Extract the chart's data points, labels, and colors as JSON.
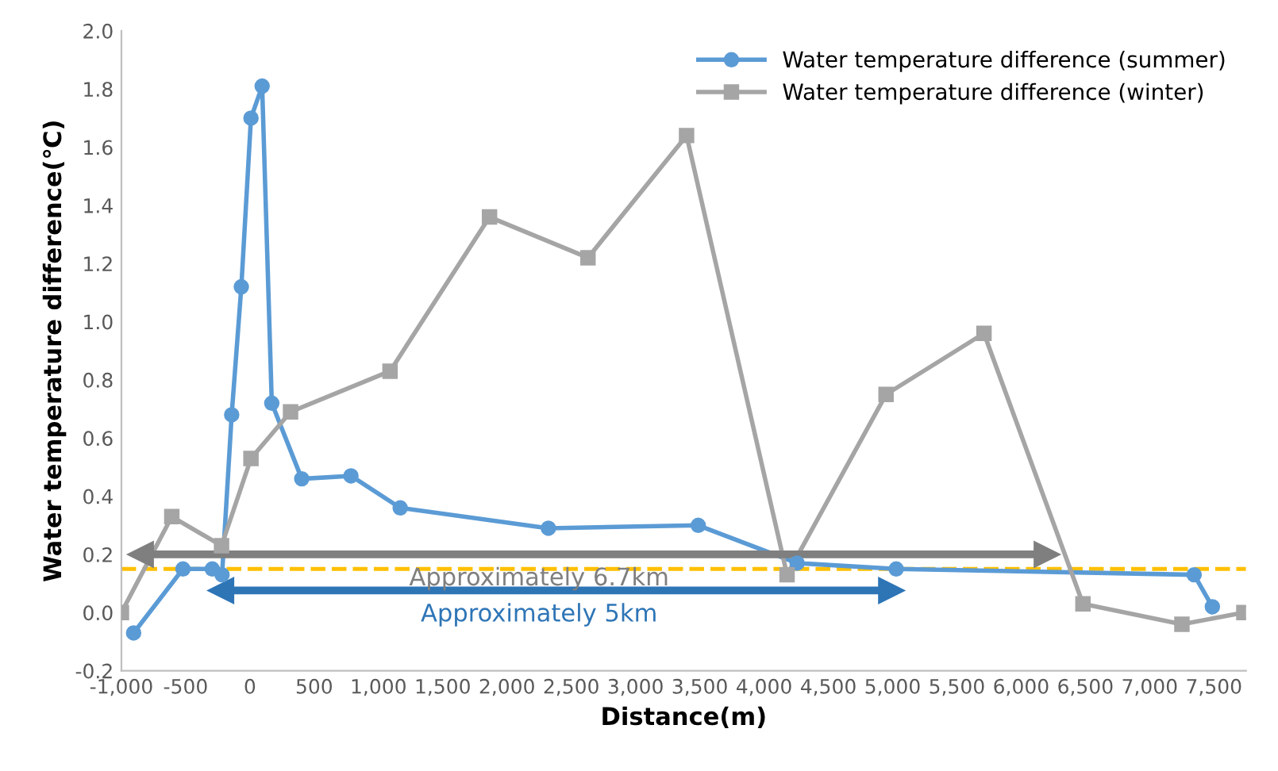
{
  "chart_data": {
    "type": "line",
    "xlabel": "Distance(m)",
    "ylabel": "Water temperature difference(℃)",
    "xlim": [
      -1000,
      7750
    ],
    "ylim": [
      -0.2,
      2.0
    ],
    "xticks": [
      {
        "value": -1000,
        "label": "-1,000"
      },
      -500,
      0,
      500,
      {
        "value": 1000,
        "label": "1,000"
      },
      {
        "value": 1500,
        "label": "1,500"
      },
      {
        "value": 2000,
        "label": "2,000"
      },
      {
        "value": 2500,
        "label": "2,500"
      },
      {
        "value": 3000,
        "label": "3,000"
      },
      {
        "value": 3500,
        "label": "3,500"
      },
      {
        "value": 4000,
        "label": "4,000"
      },
      {
        "value": 4500,
        "label": "4,500"
      },
      {
        "value": 5000,
        "label": "5,000"
      },
      {
        "value": 5500,
        "label": "5,500"
      },
      {
        "value": 6000,
        "label": "6,000"
      },
      {
        "value": 6500,
        "label": "6,500"
      },
      {
        "value": 7000,
        "label": "7,000"
      },
      {
        "value": 7500,
        "label": "7,500"
      }
    ],
    "yticks": [
      -0.2,
      {
        "value": 0,
        "label": "0.0"
      },
      0.2,
      0.4,
      0.6,
      0.8,
      {
        "value": 1,
        "label": "1.0"
      },
      1.2,
      1.4,
      1.6,
      1.8,
      {
        "value": 2,
        "label": "2.0"
      }
    ],
    "legend": "top right",
    "series": [
      {
        "name": "Water temperature difference (summer)",
        "color": "#5b9bd5",
        "marker": "circle",
        "x": [
          -905,
          -521,
          -293,
          -217,
          -142,
          -67,
          8,
          95,
          170,
          403,
          786,
          1169,
          2322,
          3488,
          4257,
          5028,
          7346,
          7488
        ],
        "values": [
          -0.07,
          0.15,
          0.15,
          0.13,
          0.68,
          1.12,
          1.7,
          1.81,
          0.72,
          0.46,
          0.47,
          0.36,
          0.29,
          0.3,
          0.17,
          0.15,
          0.13,
          0.02
        ]
      },
      {
        "name": "Water temperature difference (winter)",
        "color": "#a5a5a5",
        "marker": "square",
        "x": [
          -1000,
          -608,
          -221,
          8,
          316,
          1090,
          1864,
          2630,
          3397,
          4179,
          4949,
          5711,
          6481,
          7251,
          7733
        ],
        "values": [
          0.0,
          0.33,
          0.23,
          0.53,
          0.69,
          0.83,
          1.36,
          1.22,
          1.64,
          0.13,
          0.75,
          0.96,
          0.03,
          -0.04,
          0.0
        ]
      },
      {
        "color": "#7f7f7f",
        "marker": "triangle",
        "x": [
          -850,
          6200
        ],
        "values": [
          0.2,
          0.2
        ]
      },
      {
        "color": "#2e75b6",
        "marker": "triangle",
        "x": [
          -225,
          4990
        ],
        "values": [
          0.076,
          0.076
        ]
      }
    ],
    "ref_lines": [
      {
        "axis": "y",
        "value": 0.15,
        "color": "#ffc000",
        "line_style": "dashed"
      }
    ],
    "annotations": [
      {
        "text": "Approximately 6.7km",
        "x": 2250,
        "y": 0.2
      },
      {
        "text": "Approximately 5km",
        "x": 2250,
        "y": 0.076
      }
    ]
  }
}
